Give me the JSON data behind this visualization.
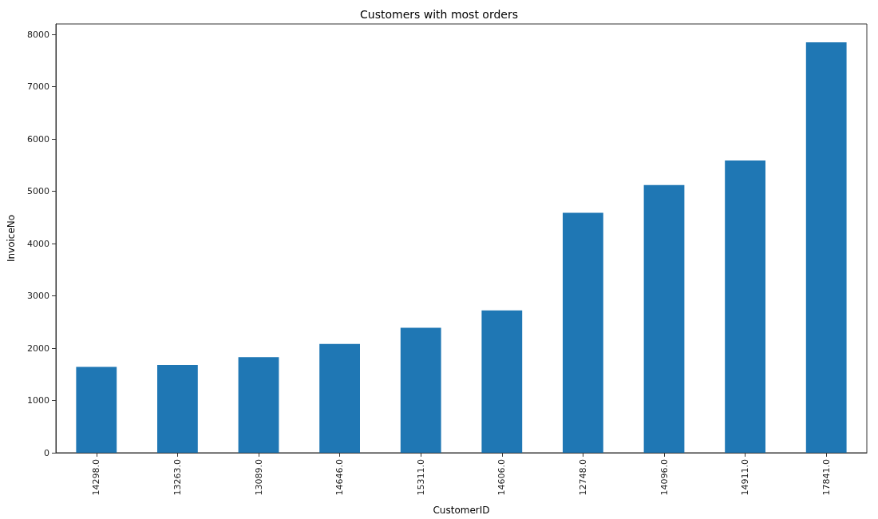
{
  "chart_data": {
    "type": "bar",
    "title": "Customers with most orders",
    "xlabel": "CustomerID",
    "ylabel": "InvoiceNo",
    "categories": [
      "14298.0",
      "13263.0",
      "13089.0",
      "14646.0",
      "15311.0",
      "14606.0",
      "12748.0",
      "14096.0",
      "14911.0",
      "17841.0"
    ],
    "values": [
      1640,
      1680,
      1830,
      2080,
      2390,
      2720,
      4590,
      5120,
      5590,
      7850
    ],
    "color": "#1f77b4",
    "ylim": [
      0,
      8200
    ],
    "yticks": [
      0,
      1000,
      2000,
      3000,
      4000,
      5000,
      6000,
      7000,
      8000
    ],
    "grid": false
  }
}
